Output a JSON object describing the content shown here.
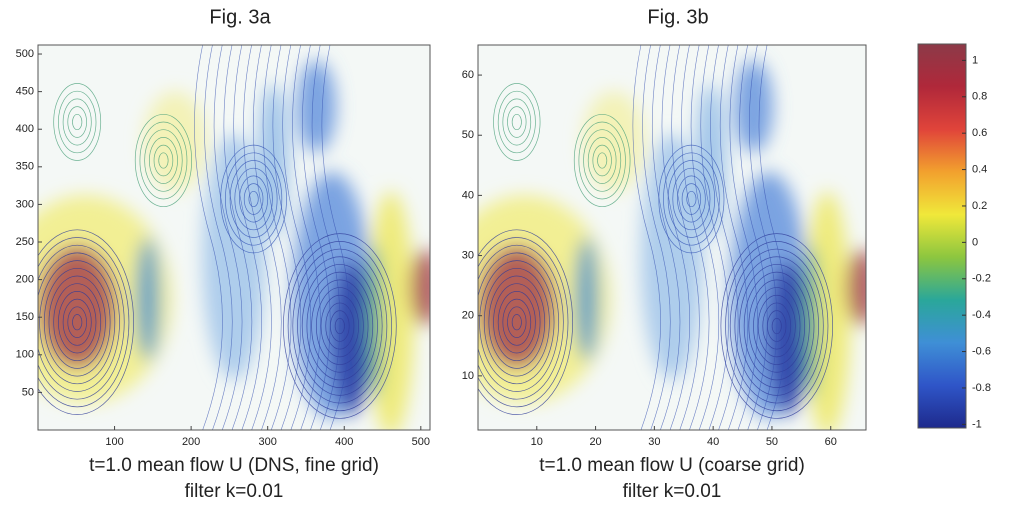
{
  "chart_data": [
    {
      "type": "contour",
      "title": "Fig. 3a",
      "caption": [
        "t=1.0  mean flow U (DNS, fine grid)",
        "filter k=0.01"
      ],
      "xlim": [
        0,
        512
      ],
      "ylim": [
        0,
        512
      ],
      "xticks": [
        100,
        200,
        300,
        400,
        500
      ],
      "yticks": [
        50,
        100,
        150,
        200,
        250,
        300,
        350,
        400,
        450,
        500
      ]
    },
    {
      "type": "contour",
      "title": "Fig. 3b",
      "caption": [
        "t=1.0  mean flow U (coarse grid)",
        "filter k=0.01"
      ],
      "xlim": [
        0,
        66
      ],
      "ylim": [
        1,
        65
      ],
      "xticks": [
        10,
        20,
        30,
        40,
        50,
        60
      ],
      "yticks": [
        10,
        20,
        30,
        40,
        50,
        60
      ]
    },
    {
      "type": "colorbar",
      "ylim": [
        -1.02,
        1.09
      ],
      "yticks": [
        1,
        0.8,
        0.6,
        0.4,
        0.2,
        0,
        -0.2,
        -0.4,
        -0.6,
        -0.8,
        -1
      ],
      "colormap": [
        "#1e2a8c",
        "#2f55c8",
        "#3f8fd6",
        "#2aa79a",
        "#8cc63f",
        "#f0e83a",
        "#f2a12e",
        "#e0443a",
        "#b0283a",
        "#8c3a48"
      ]
    }
  ]
}
